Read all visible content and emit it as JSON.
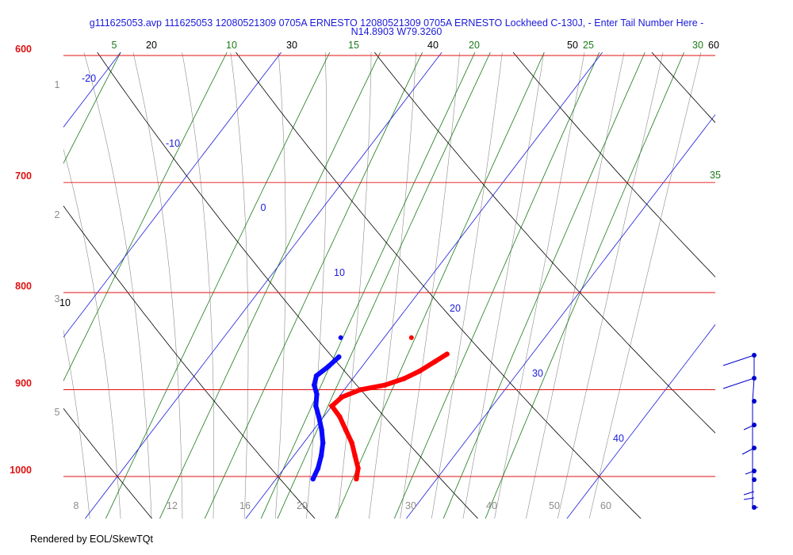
{
  "title_line1": "g111625053.avp 111625053 12080521309 0705A ERNESTO 12080521309 0705A ERNESTO Lockheed C-130J, - Enter Tail Number Here -",
  "title_line2": "N14.8903 W79.3260",
  "footer": "Rendered by EOL/SkewTQt",
  "colors": {
    "isobar": "#e01010",
    "isotherm": "#1a1adc",
    "dry_adiabat": "#000000",
    "mixing_ratio": "#1a7a1a",
    "moist_adiabat": "#8c8c8c",
    "temperature": "#ff0000",
    "dewpoint": "#0a0aff",
    "wind": "#0000cc"
  },
  "chart_data": {
    "type": "skew-t",
    "pressure_range_hPa": [
      1030,
      580
    ],
    "isobars_hPa": [
      600,
      700,
      800,
      900,
      1000
    ],
    "isotherms_C": [
      -20,
      -10,
      0,
      10,
      20,
      30,
      40
    ],
    "dry_adiabats_label": [
      10,
      20,
      30,
      40,
      50,
      60
    ],
    "mixing_ratio_top_labels": [
      5,
      10,
      15,
      20,
      25,
      30,
      35
    ],
    "bottom_labels": [
      8,
      12,
      16,
      20,
      30,
      40,
      50,
      60
    ],
    "height_km_labels": [
      1,
      2,
      3,
      5
    ],
    "temperature_profile": [
      {
        "p": 1003,
        "t": 25.0
      },
      {
        "p": 990,
        "t": 24.6
      },
      {
        "p": 975,
        "t": 23.8
      },
      {
        "p": 960,
        "t": 23.0
      },
      {
        "p": 945,
        "t": 22.0
      },
      {
        "p": 930,
        "t": 21.0
      },
      {
        "p": 918,
        "t": 20.0
      },
      {
        "p": 908,
        "t": 20.2
      },
      {
        "p": 900,
        "t": 21.0
      },
      {
        "p": 895,
        "t": 22.3
      },
      {
        "p": 888,
        "t": 23.2
      },
      {
        "p": 880,
        "t": 23.8
      },
      {
        "p": 870,
        "t": 24.3
      },
      {
        "p": 862,
        "t": 24.7
      }
    ],
    "dewpoint_profile": [
      {
        "p": 1003,
        "t": 22.3
      },
      {
        "p": 990,
        "t": 22.1
      },
      {
        "p": 975,
        "t": 21.7
      },
      {
        "p": 960,
        "t": 21.2
      },
      {
        "p": 945,
        "t": 20.5
      },
      {
        "p": 930,
        "t": 19.7
      },
      {
        "p": 918,
        "t": 19.0
      },
      {
        "p": 905,
        "t": 18.5
      },
      {
        "p": 895,
        "t": 17.9
      },
      {
        "p": 885,
        "t": 17.6
      },
      {
        "p": 875,
        "t": 17.9
      },
      {
        "p": 865,
        "t": 18.1
      }
    ],
    "isolated_points": [
      {
        "p": 845,
        "t": 17.3,
        "series": "dewpoint"
      },
      {
        "p": 845,
        "t": 21.7,
        "series": "temperature"
      }
    ],
    "wind_barb_levels_hPa": [
      870,
      895,
      920,
      945,
      970,
      990,
      1003,
      1025
    ]
  }
}
